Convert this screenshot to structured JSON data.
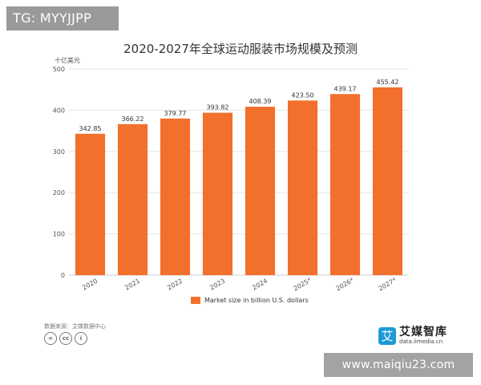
{
  "overlay": {
    "tg_label": "TG: MYYJJPP",
    "watermark": "www.maiqiu23.com"
  },
  "footer": {
    "source": "数据来源：艾媒数据中心",
    "cc_icons": [
      "=",
      "cc",
      "i"
    ],
    "brand_name": "艾媒智库",
    "brand_url": "data.iimedia.cn",
    "brand_logo_char": "艾"
  },
  "colors": {
    "bar": "#f26f2c",
    "grid": "#e6e6e6",
    "axis_text": "#555555",
    "brand": "#1c9ad6"
  },
  "chart_data": {
    "type": "bar",
    "title": "2020-2027年全球运动服装市场规模及预测",
    "ylabel": "十亿美元",
    "xlabel": "",
    "categories": [
      "2020",
      "2021",
      "2022",
      "2023",
      "2024",
      "2025*",
      "2026*",
      "2027*"
    ],
    "series": [
      {
        "name": "Market size in billion U.S. dollars",
        "values": [
          342.85,
          366.22,
          379.77,
          393.82,
          408.39,
          423.5,
          439.17,
          455.42
        ],
        "labels": [
          "342.85",
          "366.22",
          "379.77",
          "393.82",
          "408.39",
          "423.50",
          "439.17",
          "455.42"
        ]
      }
    ],
    "ylim": [
      0,
      500
    ],
    "yticks": [
      0,
      100,
      200,
      300,
      400,
      500
    ],
    "grid": true,
    "legend": "bottom-center"
  }
}
